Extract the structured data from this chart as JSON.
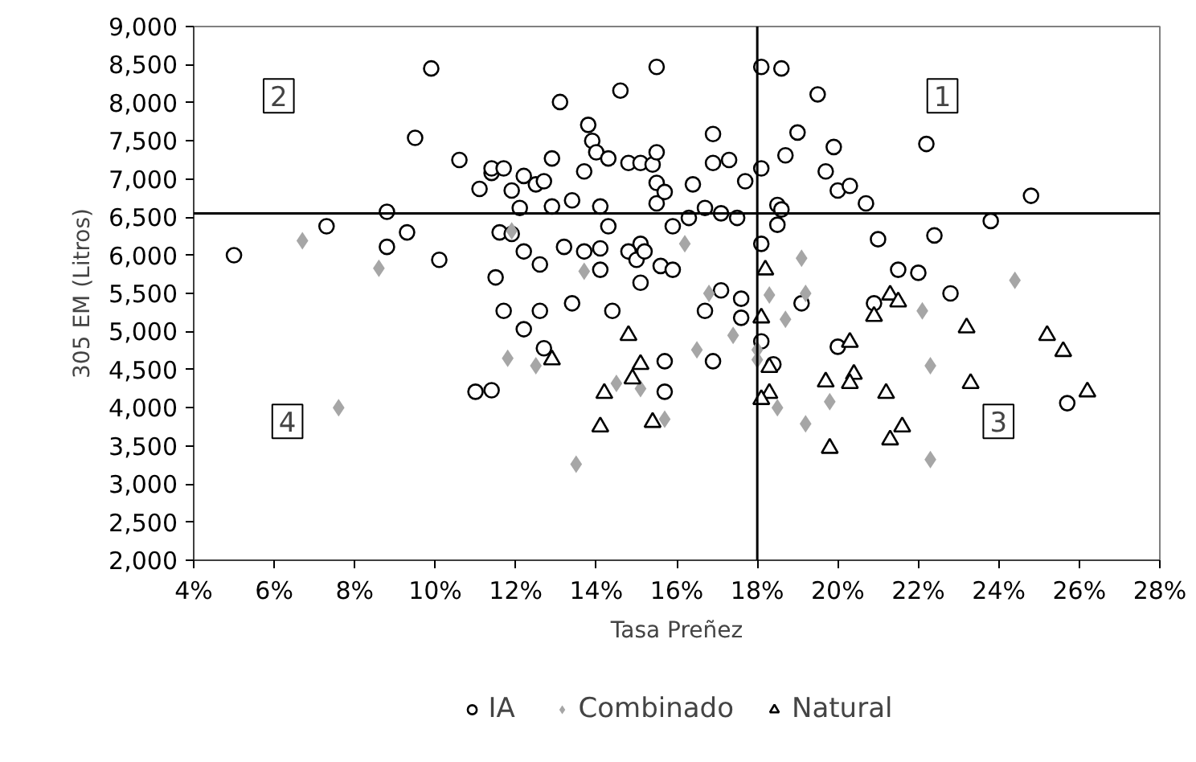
{
  "chart_data": {
    "type": "scatter",
    "xlabel": "Tasa Preñez",
    "ylabel": "305 EM (Litros)",
    "annotations": [
      "1",
      "2",
      "3",
      "4"
    ],
    "xlim": [
      4,
      28
    ],
    "ylim": [
      2000,
      9000
    ],
    "xticks": [
      {
        "value": 4,
        "label": "4%"
      },
      {
        "value": 6,
        "label": "6%"
      },
      {
        "value": 8,
        "label": "8%"
      },
      {
        "value": 10,
        "label": "10%"
      },
      {
        "value": 12,
        "label": "12%"
      },
      {
        "value": 14,
        "label": "14%"
      },
      {
        "value": 16,
        "label": "16%"
      },
      {
        "value": 18,
        "label": "18%"
      },
      {
        "value": 20,
        "label": "20%"
      },
      {
        "value": 22,
        "label": "22%"
      },
      {
        "value": 24,
        "label": "24%"
      },
      {
        "value": 26,
        "label": "26%"
      },
      {
        "value": 28,
        "label": "28%"
      }
    ],
    "yticks": [
      {
        "value": 2000,
        "label": "2,000"
      },
      {
        "value": 2500,
        "label": "2,500"
      },
      {
        "value": 3000,
        "label": "3,000"
      },
      {
        "value": 3500,
        "label": "3,500"
      },
      {
        "value": 4000,
        "label": "4,000"
      },
      {
        "value": 4500,
        "label": "4,500"
      },
      {
        "value": 5000,
        "label": "5,000"
      },
      {
        "value": 5500,
        "label": "5,500"
      },
      {
        "value": 6000,
        "label": "6,000"
      },
      {
        "value": 6500,
        "label": "6,500"
      },
      {
        "value": 7000,
        "label": "7,000"
      },
      {
        "value": 7500,
        "label": "7,500"
      },
      {
        "value": 8000,
        "label": "8,000"
      },
      {
        "value": 8500,
        "label": "8,500"
      },
      {
        "value": 9000,
        "label": "9,000"
      }
    ],
    "ref_lines": [
      {
        "axis": "y",
        "value": 6550,
        "color": "#000000"
      },
      {
        "axis": "x",
        "value": 18,
        "color": "#000000"
      }
    ],
    "grid": false,
    "legend": "bottom",
    "series": [
      {
        "name": "IA",
        "color": "#000000",
        "marker": "circle",
        "x": [
          5.0,
          7.3,
          8.8,
          9.3,
          8.8,
          10.1,
          9.9,
          9.5,
          10.6,
          11.1,
          11.4,
          11.4,
          11.7,
          11.9,
          12.1,
          12.2,
          12.5,
          12.7,
          11.6,
          11.9,
          12.2,
          12.6,
          11.5,
          12.9,
          12.9,
          13.1,
          13.2,
          13.4,
          13.7,
          13.8,
          13.9,
          14.0,
          14.3,
          14.1,
          14.3,
          13.7,
          14.1,
          14.1,
          14.6,
          14.8,
          15.1,
          15.4,
          15.5,
          15.5,
          15.5,
          15.5,
          15.1,
          14.8,
          15.0,
          15.2,
          15.1,
          15.6,
          11.7,
          12.2,
          12.6,
          13.4,
          14.4,
          12.7,
          11.0,
          11.4,
          18.1,
          18.6,
          19.5,
          16.9,
          15.7,
          16.9,
          17.3,
          16.4,
          17.7,
          18.1,
          19.0,
          18.7,
          19.9,
          19.7,
          20.0,
          20.3,
          20.7,
          22.2,
          24.8,
          23.8,
          16.7,
          17.1,
          17.5,
          16.3,
          15.9,
          18.5,
          18.6,
          18.5,
          18.1,
          21.0,
          22.4,
          21.5,
          22.0,
          22.8,
          15.9,
          17.1,
          17.6,
          19.1,
          20.9,
          16.7,
          17.6,
          18.1,
          18.4,
          15.7,
          16.9,
          15.7,
          20.0,
          25.7
        ],
        "values": [
          6000,
          6380,
          6570,
          6300,
          6110,
          5940,
          8450,
          7540,
          7250,
          6870,
          7080,
          7140,
          7140,
          6850,
          6620,
          7040,
          6930,
          6970,
          6300,
          6280,
          6050,
          5880,
          5710,
          7270,
          6640,
          8010,
          6110,
          6720,
          7100,
          7710,
          7500,
          7350,
          7270,
          6640,
          6380,
          6050,
          6090,
          5810,
          8160,
          7210,
          7210,
          7190,
          6950,
          7350,
          6680,
          8470,
          6150,
          6050,
          5940,
          6050,
          5640,
          5860,
          5270,
          5030,
          5270,
          5370,
          5270,
          4780,
          4210,
          4230,
          8470,
          8450,
          8110,
          7590,
          6830,
          7210,
          7250,
          6930,
          6970,
          7140,
          7610,
          7310,
          7420,
          7100,
          6850,
          6910,
          6680,
          7460,
          6780,
          6450,
          6620,
          6550,
          6490,
          6490,
          6380,
          6660,
          6600,
          6400,
          6150,
          6210,
          6260,
          5810,
          5770,
          5500,
          5810,
          5540,
          5430,
          5370,
          5370,
          5270,
          5180,
          4870,
          4570,
          4610,
          4610,
          4210,
          4800,
          4060
        ]
      },
      {
        "name": "Combinado",
        "color": "#a6a6a6",
        "marker": "diamond",
        "x": [
          11.8,
          12.5,
          7.6,
          13.5,
          14.5,
          15.1,
          6.7,
          8.6,
          11.9,
          13.7,
          16.2,
          19.1,
          18.3,
          19.2,
          16.8,
          24.4,
          16.5,
          17.4,
          18.0,
          18.0,
          18.7,
          22.1,
          22.3,
          19.8,
          19.2,
          18.5,
          22.3,
          15.7
        ],
        "values": [
          4650,
          4550,
          4000,
          3260,
          4320,
          4250,
          6190,
          5830,
          6320,
          5790,
          6150,
          5960,
          5480,
          5500,
          5500,
          5670,
          4760,
          4950,
          4760,
          4630,
          5160,
          5270,
          4550,
          4080,
          3790,
          4000,
          3320,
          3850
        ]
      },
      {
        "name": "Natural",
        "color": "#000000",
        "marker": "triangle",
        "x": [
          12.9,
          14.8,
          15.1,
          14.9,
          14.2,
          14.1,
          15.4,
          18.2,
          21.3,
          21.5,
          18.1,
          20.9,
          20.3,
          23.2,
          25.2,
          25.6,
          18.3,
          20.4,
          19.7,
          20.3,
          21.2,
          23.3,
          26.2,
          18.3,
          18.1,
          21.6,
          21.3,
          19.8
        ],
        "values": [
          4630,
          4950,
          4570,
          4380,
          4190,
          3750,
          3810,
          5810,
          5480,
          5390,
          5180,
          5200,
          4860,
          5050,
          4950,
          4740,
          4530,
          4440,
          4340,
          4320,
          4190,
          4320,
          4210,
          4190,
          4110,
          3750,
          3580,
          3470
        ]
      }
    ]
  }
}
